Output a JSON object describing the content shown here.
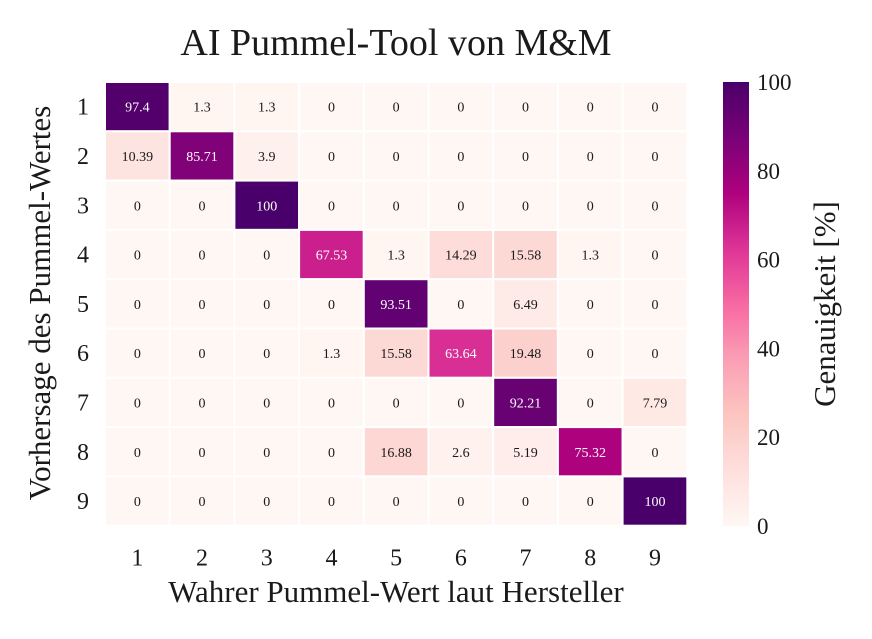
{
  "chart_data": {
    "type": "heatmap",
    "title": "AI Pummel-Tool von M&M",
    "xlabel": "Wahrer Pummel-Wert laut Hersteller",
    "ylabel": "Vorhersage des Pummel-Wertes",
    "colorbar_label": "Genauigkeit [%]",
    "x_categories": [
      "1",
      "2",
      "3",
      "4",
      "5",
      "6",
      "7",
      "8",
      "9"
    ],
    "y_categories": [
      "1",
      "2",
      "3",
      "4",
      "5",
      "6",
      "7",
      "8",
      "9"
    ],
    "values": [
      [
        97.4,
        1.3,
        1.3,
        0,
        0,
        0,
        0,
        0,
        0
      ],
      [
        10.39,
        85.71,
        3.9,
        0,
        0,
        0,
        0,
        0,
        0
      ],
      [
        0,
        0,
        100,
        0,
        0,
        0,
        0,
        0,
        0
      ],
      [
        0,
        0,
        0,
        67.53,
        1.3,
        14.29,
        15.58,
        1.3,
        0
      ],
      [
        0,
        0,
        0,
        0,
        93.51,
        0,
        6.49,
        0,
        0
      ],
      [
        0,
        0,
        0,
        1.3,
        15.58,
        63.64,
        19.48,
        0,
        0
      ],
      [
        0,
        0,
        0,
        0,
        0,
        0,
        92.21,
        0,
        7.79
      ],
      [
        0,
        0,
        0,
        0,
        16.88,
        2.6,
        5.19,
        75.32,
        0
      ],
      [
        0,
        0,
        0,
        0,
        0,
        0,
        0,
        0,
        100
      ]
    ],
    "color_range": [
      0,
      100
    ],
    "colorbar_ticks": [
      "0",
      "20",
      "40",
      "60",
      "80",
      "100"
    ],
    "colormap": "RdPu",
    "colors": {
      "cmap_stops": [
        "#fff7f3",
        "#fde0dd",
        "#fcc5c0",
        "#fa9fb5",
        "#f768a1",
        "#dd3497",
        "#ae017e",
        "#7a0177",
        "#49006a"
      ],
      "grid_line": "#ffffff",
      "text_dark": "#1a1a1a",
      "text_light": "#ffffff"
    },
    "legend_position": "right",
    "grid": false
  }
}
